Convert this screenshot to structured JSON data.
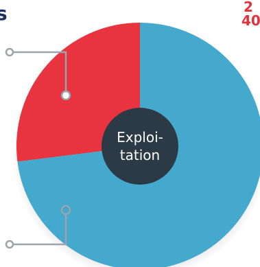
{
  "header": {
    "left_fragment": "s",
    "right_fragment_top": "2",
    "right_fragment_bottom": "40"
  },
  "chart_data": {
    "type": "pie",
    "center_label": "Exploi-\ntation",
    "slices": [
      {
        "value": 27,
        "color": "#e8343f"
      },
      {
        "value": 73,
        "color": "#44a9cc"
      }
    ],
    "hub_color": "#2c3a46",
    "connector_color": "#9aa4ad"
  }
}
